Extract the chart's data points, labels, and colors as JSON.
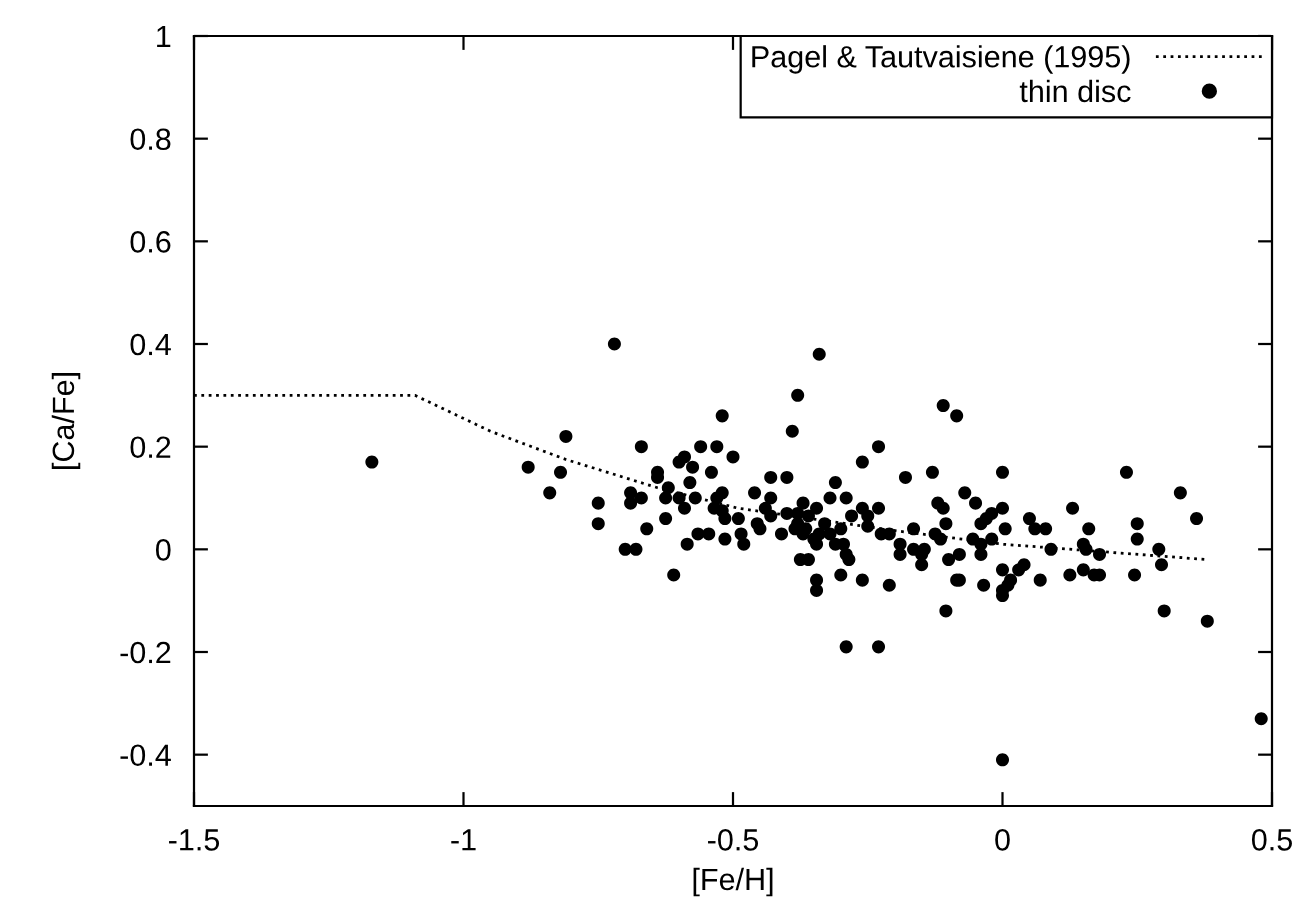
{
  "chart_data": {
    "type": "scatter",
    "xlabel": "[Fe/H]",
    "ylabel": "[Ca/Fe]",
    "xlim": [
      -1.5,
      0.5
    ],
    "xticks": [
      -1.5,
      -1,
      -0.5,
      0,
      0.5
    ],
    "ylim": [
      -0.5,
      1
    ],
    "yticks": [
      -0.4,
      -0.2,
      0,
      0.2,
      0.4,
      0.6,
      0.8,
      1
    ],
    "grid": false,
    "legend": "top right",
    "series": [
      {
        "name": "Pagel & Tautvaisiene (1995)",
        "type": "line",
        "line_style": "dotted",
        "marker": "none",
        "color": "#000000",
        "x": [
          -1.5,
          -1.09,
          -0.95,
          -0.81,
          -0.64,
          -0.49,
          -0.19,
          0,
          0.38
        ],
        "values": [
          0.3,
          0.3,
          0.23,
          0.175,
          0.12,
          0.08,
          0.035,
          0.01,
          -0.02
        ]
      },
      {
        "name": "thin disc",
        "marker": "circle",
        "color": "#000000",
        "x": [
          -1.17,
          -0.72,
          -0.81,
          -0.67,
          -0.88,
          -0.82,
          -0.64,
          -0.64,
          -0.84,
          -0.69,
          -0.67,
          -0.75,
          -0.69,
          -0.75,
          -0.66,
          -0.7,
          -0.68,
          -0.34,
          -0.38,
          -0.52,
          -0.11,
          -0.085,
          -0.39,
          -0.56,
          -0.53,
          -0.23,
          -0.5,
          -0.6,
          -0.59,
          -0.575,
          -0.26,
          -0.54,
          -0.43,
          -0.4,
          -0.18,
          -0.13,
          -0.58,
          -0.31,
          -0.62,
          -0.52,
          -0.46,
          -0.625,
          -0.6,
          -0.57,
          -0.53,
          -0.43,
          -0.32,
          -0.29,
          -0.12,
          -0.59,
          -0.535,
          -0.52,
          -0.44,
          -0.37,
          -0.345,
          -0.26,
          -0.23,
          -0.11,
          -0.625,
          -0.515,
          -0.49,
          -0.43,
          -0.4,
          -0.38,
          -0.36,
          -0.28,
          -0.25,
          -0.455,
          -0.38,
          -0.33,
          -0.45,
          -0.385,
          -0.365,
          -0.3,
          -0.25,
          -0.105,
          -0.565,
          -0.545,
          -0.485,
          -0.41,
          -0.37,
          -0.34,
          -0.32,
          -0.225,
          -0.21,
          -0.165,
          -0.125,
          -0.515,
          -0.35,
          -0.31,
          -0.295,
          -0.19,
          -0.165,
          -0.145,
          -0.115,
          -0.585,
          -0.48,
          -0.345,
          -0.29,
          -0.19,
          -0.15,
          -0.1,
          -0.285,
          -0.15,
          -0.375,
          -0.36,
          -0.61,
          -0.3,
          -0.26,
          -0.345,
          -0.345,
          -0.21,
          -0.085,
          -0.105,
          -0.29,
          -0.23,
          0.0,
          0.23,
          -0.07,
          0.33,
          -0.05,
          0.0,
          0.13,
          0.36,
          0.05,
          -0.02,
          -0.03,
          -0.04,
          0.005,
          0.06,
          0.08,
          0.16,
          0.25,
          -0.055,
          -0.02,
          0.25,
          -0.04,
          0.15,
          0.09,
          0.155,
          0.29,
          -0.04,
          0.18,
          -0.08,
          0.295,
          0.04,
          0.03,
          0.0,
          0.15,
          0.125,
          0.17,
          0.18,
          0.245,
          -0.08,
          -0.035,
          0.07,
          0.015,
          0.01,
          0.0,
          0.0,
          0.3,
          0.38,
          0.48,
          0.0
        ],
        "values": [
          0.17,
          0.4,
          0.22,
          0.2,
          0.16,
          0.15,
          0.15,
          0.14,
          0.11,
          0.11,
          0.1,
          0.09,
          0.09,
          0.05,
          0.04,
          0.0,
          0.0,
          0.38,
          0.3,
          0.26,
          0.28,
          0.26,
          0.23,
          0.2,
          0.2,
          0.2,
          0.18,
          0.17,
          0.18,
          0.16,
          0.17,
          0.15,
          0.14,
          0.14,
          0.14,
          0.15,
          0.13,
          0.13,
          0.12,
          0.11,
          0.11,
          0.1,
          0.1,
          0.1,
          0.1,
          0.1,
          0.1,
          0.1,
          0.09,
          0.08,
          0.08,
          0.075,
          0.08,
          0.09,
          0.08,
          0.08,
          0.08,
          0.08,
          0.06,
          0.06,
          0.06,
          0.065,
          0.07,
          0.07,
          0.065,
          0.065,
          0.065,
          0.05,
          0.05,
          0.05,
          0.04,
          0.04,
          0.04,
          0.04,
          0.045,
          0.05,
          0.03,
          0.03,
          0.03,
          0.03,
          0.03,
          0.03,
          0.03,
          0.03,
          0.03,
          0.04,
          0.03,
          0.02,
          0.02,
          0.01,
          0.01,
          0.01,
          0.0,
          0.0,
          0.02,
          0.01,
          0.01,
          0.01,
          -0.01,
          -0.01,
          -0.01,
          -0.02,
          -0.02,
          -0.03,
          -0.02,
          -0.02,
          -0.05,
          -0.05,
          -0.06,
          -0.06,
          -0.08,
          -0.07,
          -0.06,
          -0.12,
          -0.19,
          -0.19,
          0.15,
          0.15,
          0.11,
          0.11,
          0.09,
          0.08,
          0.08,
          0.06,
          0.06,
          0.07,
          0.06,
          0.05,
          0.04,
          0.04,
          0.04,
          0.04,
          0.05,
          0.02,
          0.02,
          0.02,
          0.01,
          0.01,
          0.0,
          0.0,
          0.0,
          -0.01,
          -0.01,
          -0.01,
          -0.03,
          -0.03,
          -0.04,
          -0.04,
          -0.04,
          -0.05,
          -0.05,
          -0.05,
          -0.05,
          -0.06,
          -0.07,
          -0.06,
          -0.06,
          -0.07,
          -0.08,
          -0.09,
          -0.12,
          -0.14,
          -0.33,
          -0.41
        ]
      }
    ]
  }
}
